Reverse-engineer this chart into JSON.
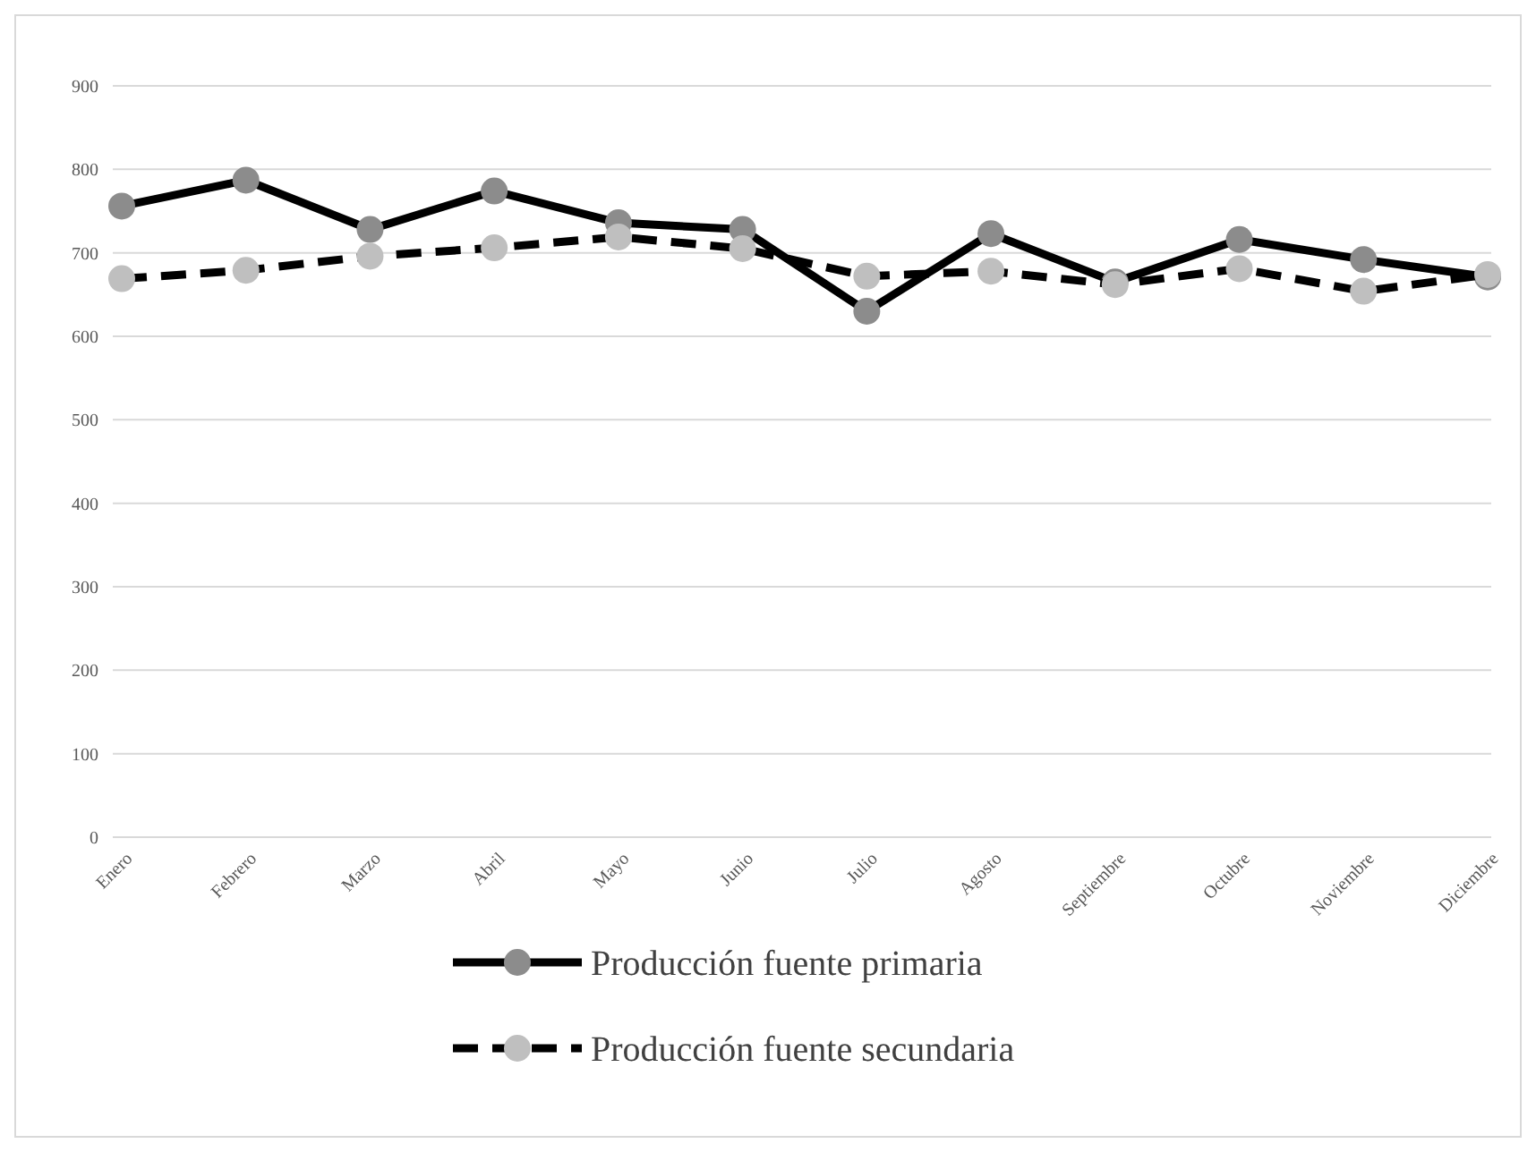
{
  "chart_data": {
    "type": "line",
    "categories": [
      "Enero",
      "Febrero",
      "Marzo",
      "Abril",
      "Mayo",
      "Junio",
      "Julio",
      "Agosto",
      "Septiembre",
      "Octubre",
      "Noviembre",
      "Diciembre"
    ],
    "series": [
      {
        "name": "Producción fuente primaria",
        "color": "#8c8c8c",
        "line_style": "solid",
        "values": [
          756,
          787,
          728,
          774,
          736,
          728,
          630,
          723,
          665,
          716,
          692,
          671
        ]
      },
      {
        "name": "Producción fuente secundaria",
        "color": "#bfbfbf",
        "line_style": "dashed",
        "values": [
          669,
          679,
          696,
          706,
          719,
          705,
          672,
          678,
          662,
          681,
          654,
          674
        ]
      }
    ],
    "ylim": [
      0,
      900
    ],
    "yticks": [
      0,
      100,
      200,
      300,
      400,
      500,
      600,
      700,
      800,
      900
    ],
    "grid": "y",
    "legend": "bottom",
    "marker": "circle"
  }
}
